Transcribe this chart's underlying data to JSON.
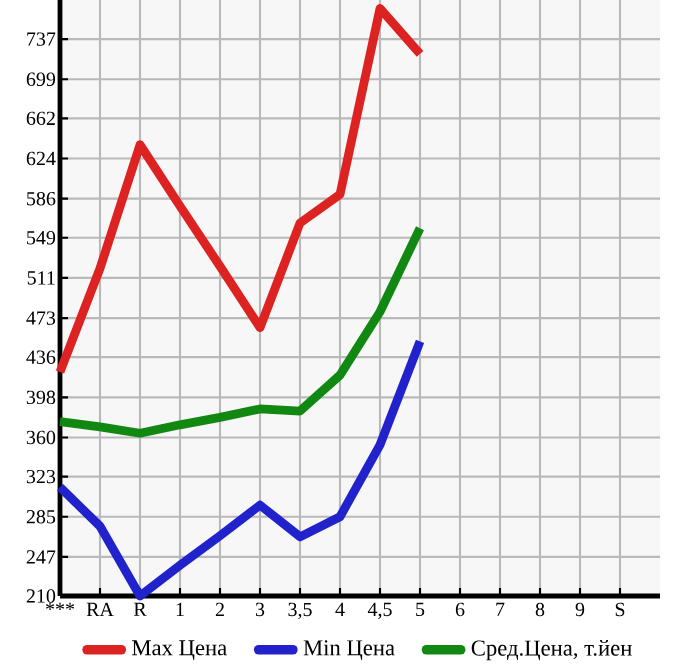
{
  "chart_data": {
    "type": "line",
    "categories": [
      "***",
      "RA",
      "R",
      "1",
      "2",
      "3",
      "3,5",
      "4",
      "4,5",
      "5",
      "6",
      "7",
      "8",
      "9",
      "S"
    ],
    "series": [
      {
        "name": "Max Цена",
        "color": "#dd2222",
        "values": [
          422,
          520,
          637,
          579,
          522,
          464,
          563,
          590,
          766,
          723,
          null,
          null,
          null,
          null,
          null
        ]
      },
      {
        "name": "Min Цена",
        "color": "#2222cc",
        "values": [
          313,
          276,
          210,
          239,
          267,
          296,
          266,
          285,
          353,
          451,
          null,
          null,
          null,
          null,
          null
        ]
      },
      {
        "name": "Сред.Цена, т.йен",
        "color": "#118811",
        "values": [
          375,
          370,
          364,
          372,
          379,
          387,
          385,
          419,
          479,
          558,
          null,
          null,
          null,
          null,
          null
        ]
      }
    ],
    "ylim": [
      210,
      774
    ],
    "yticks": [
      210,
      247,
      285,
      323,
      360,
      398,
      436,
      473,
      511,
      549,
      586,
      624,
      662,
      699,
      737
    ],
    "grid": true,
    "legend": "bottom",
    "marker": "none",
    "line_style": "solid"
  }
}
